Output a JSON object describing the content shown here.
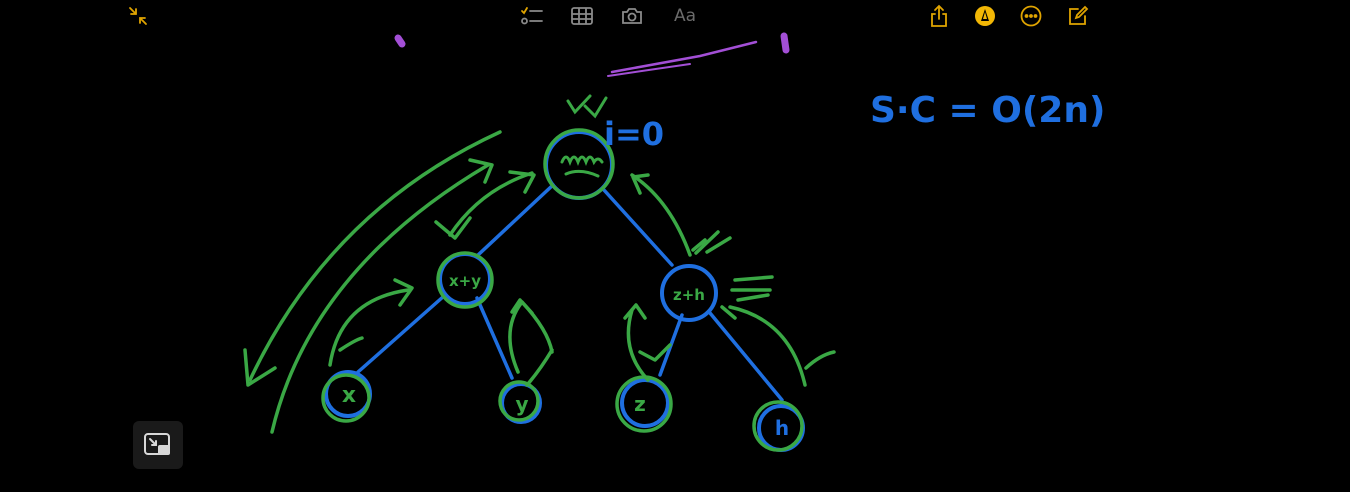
{
  "toolbar": {
    "font_button_label": "Aa"
  },
  "note": {
    "space_complexity": "S·C = O(2n)",
    "root_index_label": "i=0",
    "nodes": {
      "left_child": "x+y",
      "right_child": "z+h",
      "leaf_1": "x",
      "leaf_2": "y",
      "leaf_3": "z",
      "leaf_4": "h"
    }
  },
  "colors": {
    "background": "#000000",
    "tree_blue": "#1f6fe0",
    "trace_green": "#3aa845",
    "highlight_purple": "#a34fd6",
    "accent_yellow": "#f2b705",
    "icon_gray": "#8a8a8a"
  }
}
